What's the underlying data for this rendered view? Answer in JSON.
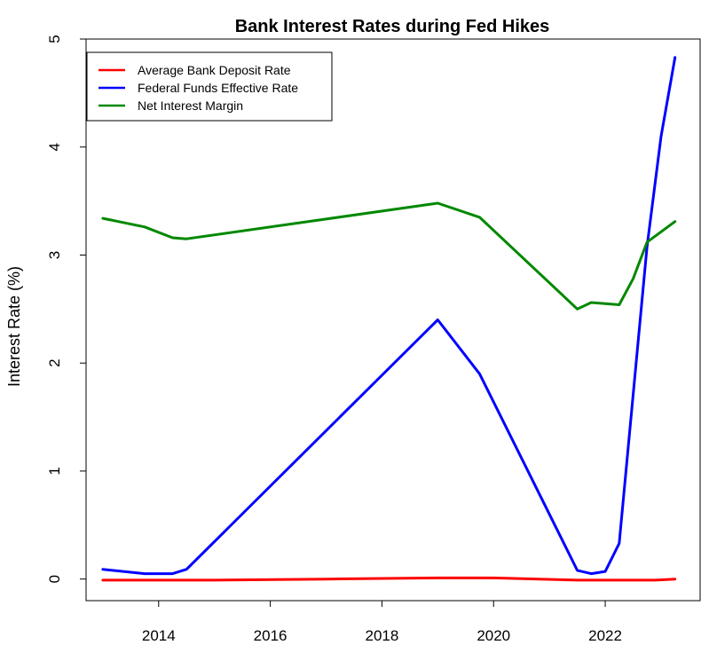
{
  "chart_data": {
    "type": "line",
    "title": "Bank Interest Rates during Fed Hikes",
    "xlabel": "",
    "ylabel": "Interest Rate (%)",
    "xlim": [
      2012.7,
      2023.7
    ],
    "ylim": [
      -0.2,
      5.0
    ],
    "x_ticks": [
      2014,
      2016,
      2018,
      2020,
      2022
    ],
    "x_tick_labels": [
      "2014",
      "2016",
      "2018",
      "2020",
      "2022"
    ],
    "y_ticks": [
      0,
      1,
      2,
      3,
      4,
      5
    ],
    "y_tick_labels": [
      "0",
      "1",
      "2",
      "3",
      "4",
      "5"
    ],
    "legend_position": "top-left",
    "grid": false,
    "series": [
      {
        "name": "Average Bank Deposit Rate",
        "color": "#ff0000",
        "points": [
          [
            2013.0,
            -0.01
          ],
          [
            2015.0,
            -0.01
          ],
          [
            2017.0,
            0.0
          ],
          [
            2019.0,
            0.01
          ],
          [
            2020.0,
            0.01
          ],
          [
            2021.5,
            -0.01
          ],
          [
            2022.9,
            -0.01
          ],
          [
            2023.25,
            0.0
          ]
        ]
      },
      {
        "name": "Federal Funds Effective Rate",
        "color": "#0000ff",
        "points": [
          [
            2013.0,
            0.09
          ],
          [
            2013.75,
            0.05
          ],
          [
            2014.25,
            0.05
          ],
          [
            2014.5,
            0.09
          ],
          [
            2019.0,
            2.4
          ],
          [
            2019.75,
            1.9
          ],
          [
            2021.5,
            0.08
          ],
          [
            2021.75,
            0.05
          ],
          [
            2022.0,
            0.07
          ],
          [
            2022.25,
            0.33
          ],
          [
            2022.75,
            3.08
          ],
          [
            2023.0,
            4.1
          ],
          [
            2023.25,
            4.83
          ]
        ]
      },
      {
        "name": "Net Interest Margin",
        "color": "#008800",
        "points": [
          [
            2013.0,
            3.34
          ],
          [
            2013.75,
            3.26
          ],
          [
            2014.25,
            3.16
          ],
          [
            2014.5,
            3.15
          ],
          [
            2019.0,
            3.48
          ],
          [
            2019.75,
            3.35
          ],
          [
            2021.5,
            2.5
          ],
          [
            2021.75,
            2.56
          ],
          [
            2022.25,
            2.54
          ],
          [
            2022.5,
            2.78
          ],
          [
            2022.75,
            3.12
          ],
          [
            2023.25,
            3.31
          ]
        ]
      }
    ]
  }
}
